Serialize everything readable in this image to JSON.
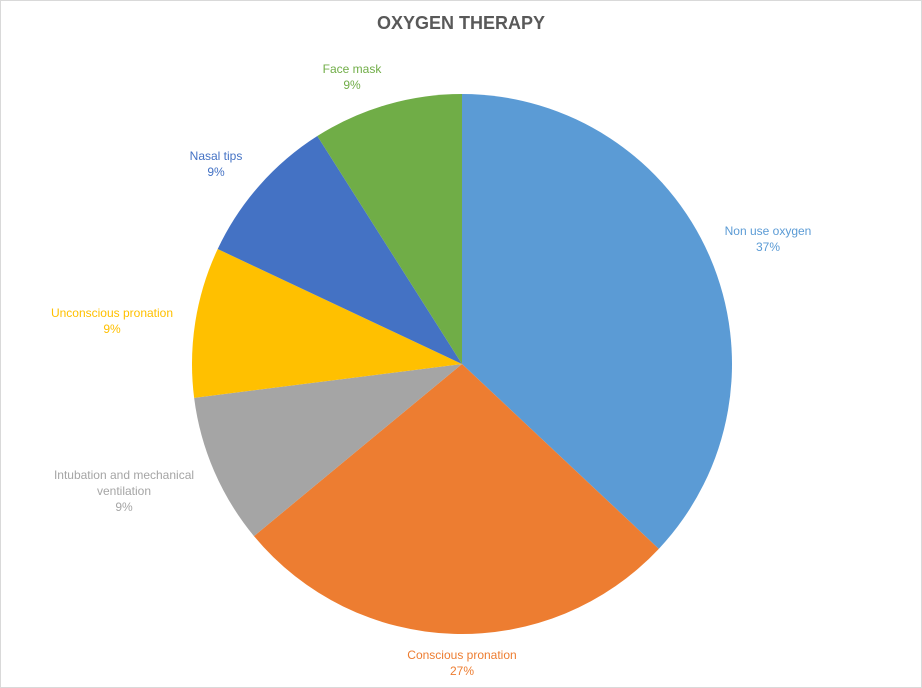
{
  "chart_data": {
    "type": "pie",
    "title": "OXYGEN THERAPY",
    "categories": [
      "Non use oxygen",
      "Conscious pronation",
      "Intubation and mechanical ventilation",
      "Unconscious  pronation",
      "Nasal tips",
      "Face mask"
    ],
    "values": [
      37,
      27,
      9,
      9,
      9,
      9
    ],
    "value_labels": [
      "37%",
      "27%",
      "9%",
      "9%",
      "9%",
      "9%"
    ],
    "colors": [
      "#5b9bd5",
      "#ed7d31",
      "#a5a5a5",
      "#ffc000",
      "#4472c4",
      "#70ad47"
    ]
  }
}
